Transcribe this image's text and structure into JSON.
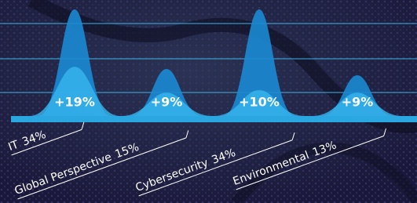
{
  "chart_data": {
    "type": "bell",
    "categories": [
      "IT",
      "Global Perspective",
      "Cybersecurity",
      "Environmental"
    ],
    "series": [
      {
        "color": "#1b8ad3",
        "values": [
          34,
          15,
          34,
          13
        ],
        "value_labels": [
          "34%",
          "15%",
          "34%",
          "13%"
        ]
      },
      {
        "color": "#37b6ef",
        "values": [
          19,
          9,
          10,
          9
        ],
        "value_labels": [
          "+19%",
          "+9%",
          "+10%",
          "+9%"
        ]
      }
    ]
  }
}
